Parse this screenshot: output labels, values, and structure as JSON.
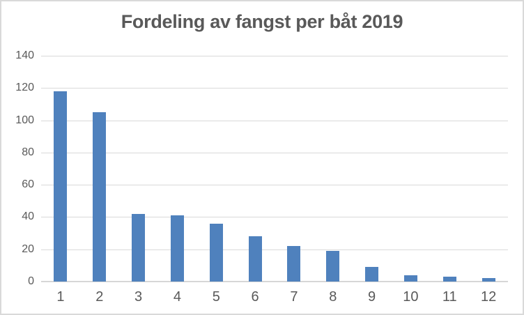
{
  "chart_data": {
    "type": "bar",
    "title": "Fordeling av fangst per båt 2019",
    "categories": [
      "1",
      "2",
      "3",
      "4",
      "5",
      "6",
      "7",
      "8",
      "9",
      "10",
      "11",
      "12"
    ],
    "values": [
      118,
      105,
      42,
      41,
      36,
      28,
      22,
      19,
      9,
      4,
      3,
      2
    ],
    "xlabel": "",
    "ylabel": "",
    "ylim": [
      0,
      140
    ],
    "ytick_step": 20,
    "ytick_labels": [
      "0",
      "20",
      "40",
      "60",
      "80",
      "100",
      "120",
      "140"
    ],
    "grid": "horizontal-only",
    "legend": "none",
    "colors": {
      "bar_fill": "#4f81bd",
      "gridline": "#d9d9d9",
      "axis_line": "#d6d6d6",
      "title_text": "#595959",
      "tick_text": "#595959",
      "frame_border": "#d9d9d9"
    }
  }
}
